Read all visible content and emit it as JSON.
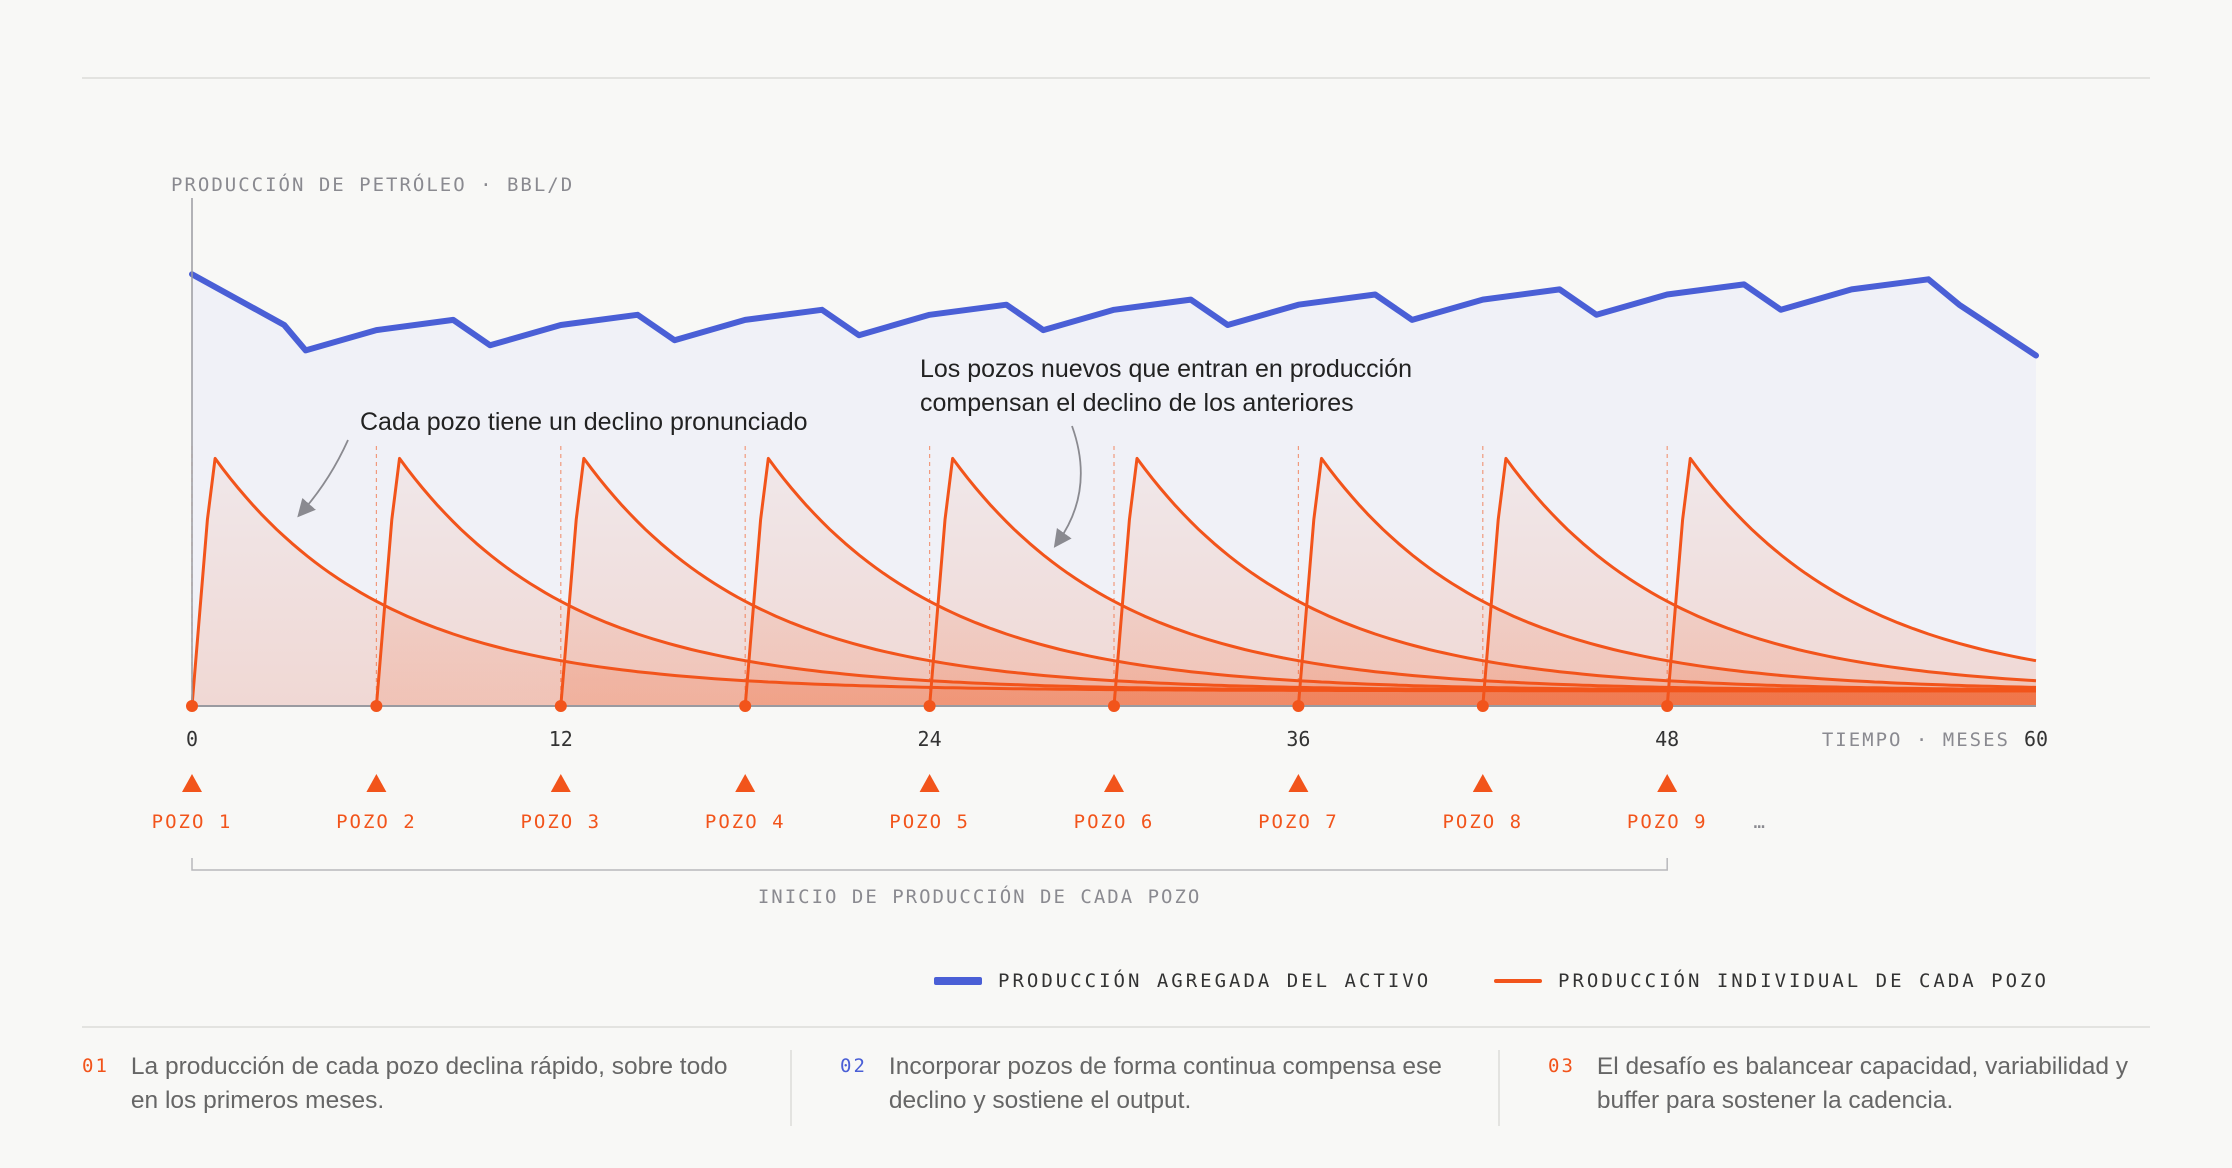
{
  "chart_data": {
    "type": "area",
    "ylabel": "PRODUCCIÓN DE PETRÓLEO · BBL/D",
    "xlabel": "TIEMPO · MESES",
    "xlim": [
      0,
      60
    ],
    "x_ticks": [
      0,
      12,
      24,
      36,
      48,
      60
    ],
    "wells": {
      "start_months": [
        0,
        6,
        12,
        18,
        24,
        30,
        36,
        42,
        48
      ],
      "labels": [
        "POZO 1",
        "POZO 2",
        "POZO 3",
        "POZO 4",
        "POZO 5",
        "POZO 6",
        "POZO 7",
        "POZO 8",
        "POZO 9"
      ],
      "ellipsis": "…",
      "peak_relative": 0.5,
      "decline_time_constant_months": 5.5,
      "tail_floor_relative": 0.03
    },
    "series": [
      {
        "name": "PRODUCCIÓN AGREGADA DEL ACTIVO",
        "color": "#4a5fd6",
        "x": [
          0,
          3.0,
          3.7,
          6.0,
          8.5,
          9.7,
          12.0,
          14.5,
          15.7,
          18.0,
          20.5,
          21.7,
          24.0,
          26.5,
          27.7,
          30.0,
          32.5,
          33.7,
          36.0,
          38.5,
          39.7,
          42.0,
          44.5,
          45.7,
          48.0,
          50.5,
          51.7,
          54.0,
          56.5,
          57.5,
          60.0
        ],
        "values": [
          0.85,
          0.75,
          0.7,
          0.74,
          0.76,
          0.71,
          0.75,
          0.77,
          0.72,
          0.76,
          0.78,
          0.73,
          0.77,
          0.79,
          0.74,
          0.78,
          0.8,
          0.75,
          0.79,
          0.81,
          0.76,
          0.8,
          0.82,
          0.77,
          0.81,
          0.83,
          0.78,
          0.82,
          0.84,
          0.79,
          0.69
        ]
      },
      {
        "name": "PRODUCCIÓN INDIVIDUAL DE CADA POZO",
        "color": "#f2541b"
      }
    ],
    "annotations": [
      "Cada pozo tiene un declino pronunciado",
      "Los pozos nuevos que entran en producción compensan el declino de los anteriores"
    ],
    "bracket_label": "INICIO DE PRODUCCIÓN DE CADA POZO",
    "legend_position": "bottom-right"
  },
  "notes": [
    {
      "num": "01",
      "text": "La producción de cada pozo declina rápido, sobre todo en los primeros meses."
    },
    {
      "num": "02",
      "text": "Incorporar pozos de forma continua compensa ese declino y sostiene el output."
    },
    {
      "num": "03",
      "text": "El desafío es balancear capacidad, variabilidad y buffer para sostener la cadencia."
    }
  ],
  "colors": {
    "aggregate": "#4a5fd6",
    "individual": "#f2541b",
    "aggregate_fill": "#eef0f7",
    "individual_fill": "#f2541b",
    "axis": "#9a9aa0",
    "muted_text": "#8a8a90"
  }
}
